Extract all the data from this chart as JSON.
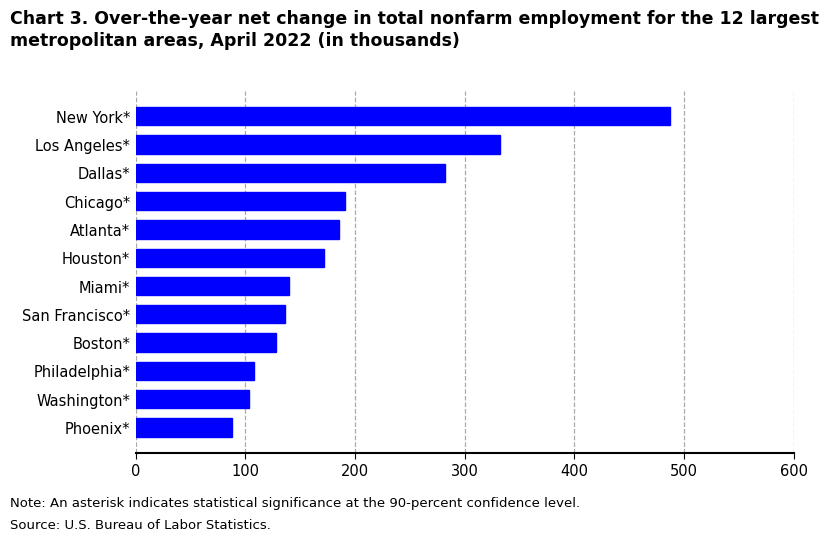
{
  "title_line1": "Chart 3. Over-the-year net change in total nonfarm employment for the 12 largest",
  "title_line2": "metropolitan areas, April 2022 (in thousands)",
  "categories": [
    "Phoenix*",
    "Washington*",
    "Philadelphia*",
    "Boston*",
    "San Francisco*",
    "Miami*",
    "Houston*",
    "Atlanta*",
    "Chicago*",
    "Dallas*",
    "Los Angeles*",
    "New York*"
  ],
  "values": [
    88,
    103,
    108,
    128,
    136,
    140,
    172,
    185,
    191,
    282,
    332,
    487
  ],
  "bar_color": "#0000ff",
  "xlim": [
    0,
    600
  ],
  "xticks": [
    0,
    100,
    200,
    300,
    400,
    500,
    600
  ],
  "grid_color": "#aaaaaa",
  "note_line1": "Note: An asterisk indicates statistical significance at the 90-percent confidence level.",
  "note_line2": "Source: U.S. Bureau of Labor Statistics.",
  "title_fontsize": 12.5,
  "label_fontsize": 10.5,
  "tick_fontsize": 10.5,
  "note_fontsize": 9.5,
  "background_color": "#ffffff",
  "bar_height": 0.65
}
